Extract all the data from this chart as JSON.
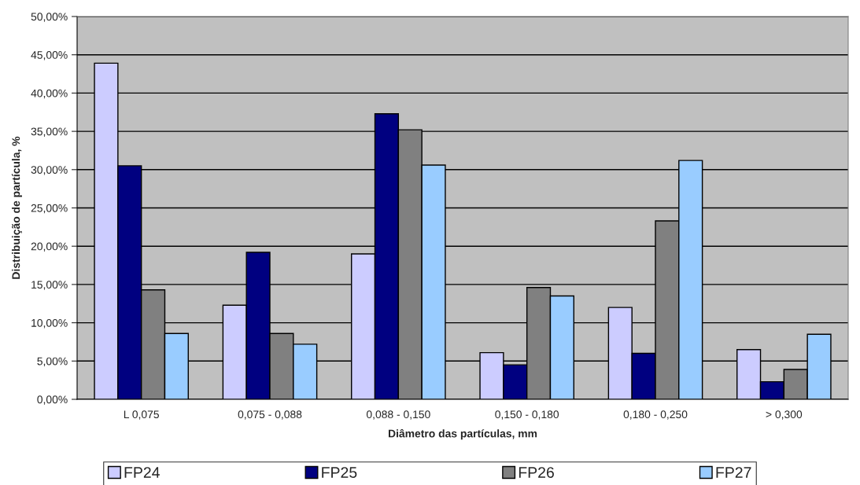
{
  "chart_data": {
    "type": "bar",
    "xlabel": "Diâmetro das partículas, mm",
    "ylabel": "Distribuição de partícula, %",
    "categories": [
      "L 0,075",
      "0,075 - 0,088",
      "0,088 - 0,150",
      "0,150 - 0,180",
      "0,180 - 0,250",
      "> 0,300"
    ],
    "series": [
      {
        "name": "FP24",
        "color": "#ccccff",
        "values": [
          43.9,
          12.3,
          19.0,
          6.1,
          12.0,
          6.5
        ]
      },
      {
        "name": "FP25",
        "color": "#000080",
        "values": [
          30.5,
          19.2,
          37.3,
          4.5,
          6.0,
          2.3
        ]
      },
      {
        "name": "FP26",
        "color": "#808080",
        "values": [
          14.3,
          8.6,
          35.2,
          14.6,
          23.3,
          3.9
        ]
      },
      {
        "name": "FP27",
        "color": "#99ccff",
        "values": [
          8.6,
          7.2,
          30.6,
          13.5,
          31.2,
          8.5
        ]
      }
    ],
    "ylim": [
      0,
      50
    ],
    "yticks": [
      {
        "value": 0,
        "label": "0,00%"
      },
      {
        "value": 5,
        "label": "5,00%"
      },
      {
        "value": 10,
        "label": "10,00%"
      },
      {
        "value": 15,
        "label": "15,00%"
      },
      {
        "value": 20,
        "label": "20,00%"
      },
      {
        "value": 25,
        "label": "25,00%"
      },
      {
        "value": 30,
        "label": "30,00%"
      },
      {
        "value": 35,
        "label": "35,00%"
      },
      {
        "value": 40,
        "label": "40,00%"
      },
      {
        "value": 45,
        "label": "45,00%"
      },
      {
        "value": 50,
        "label": "50,00%"
      }
    ],
    "grid": "y",
    "legend": "bottom"
  }
}
